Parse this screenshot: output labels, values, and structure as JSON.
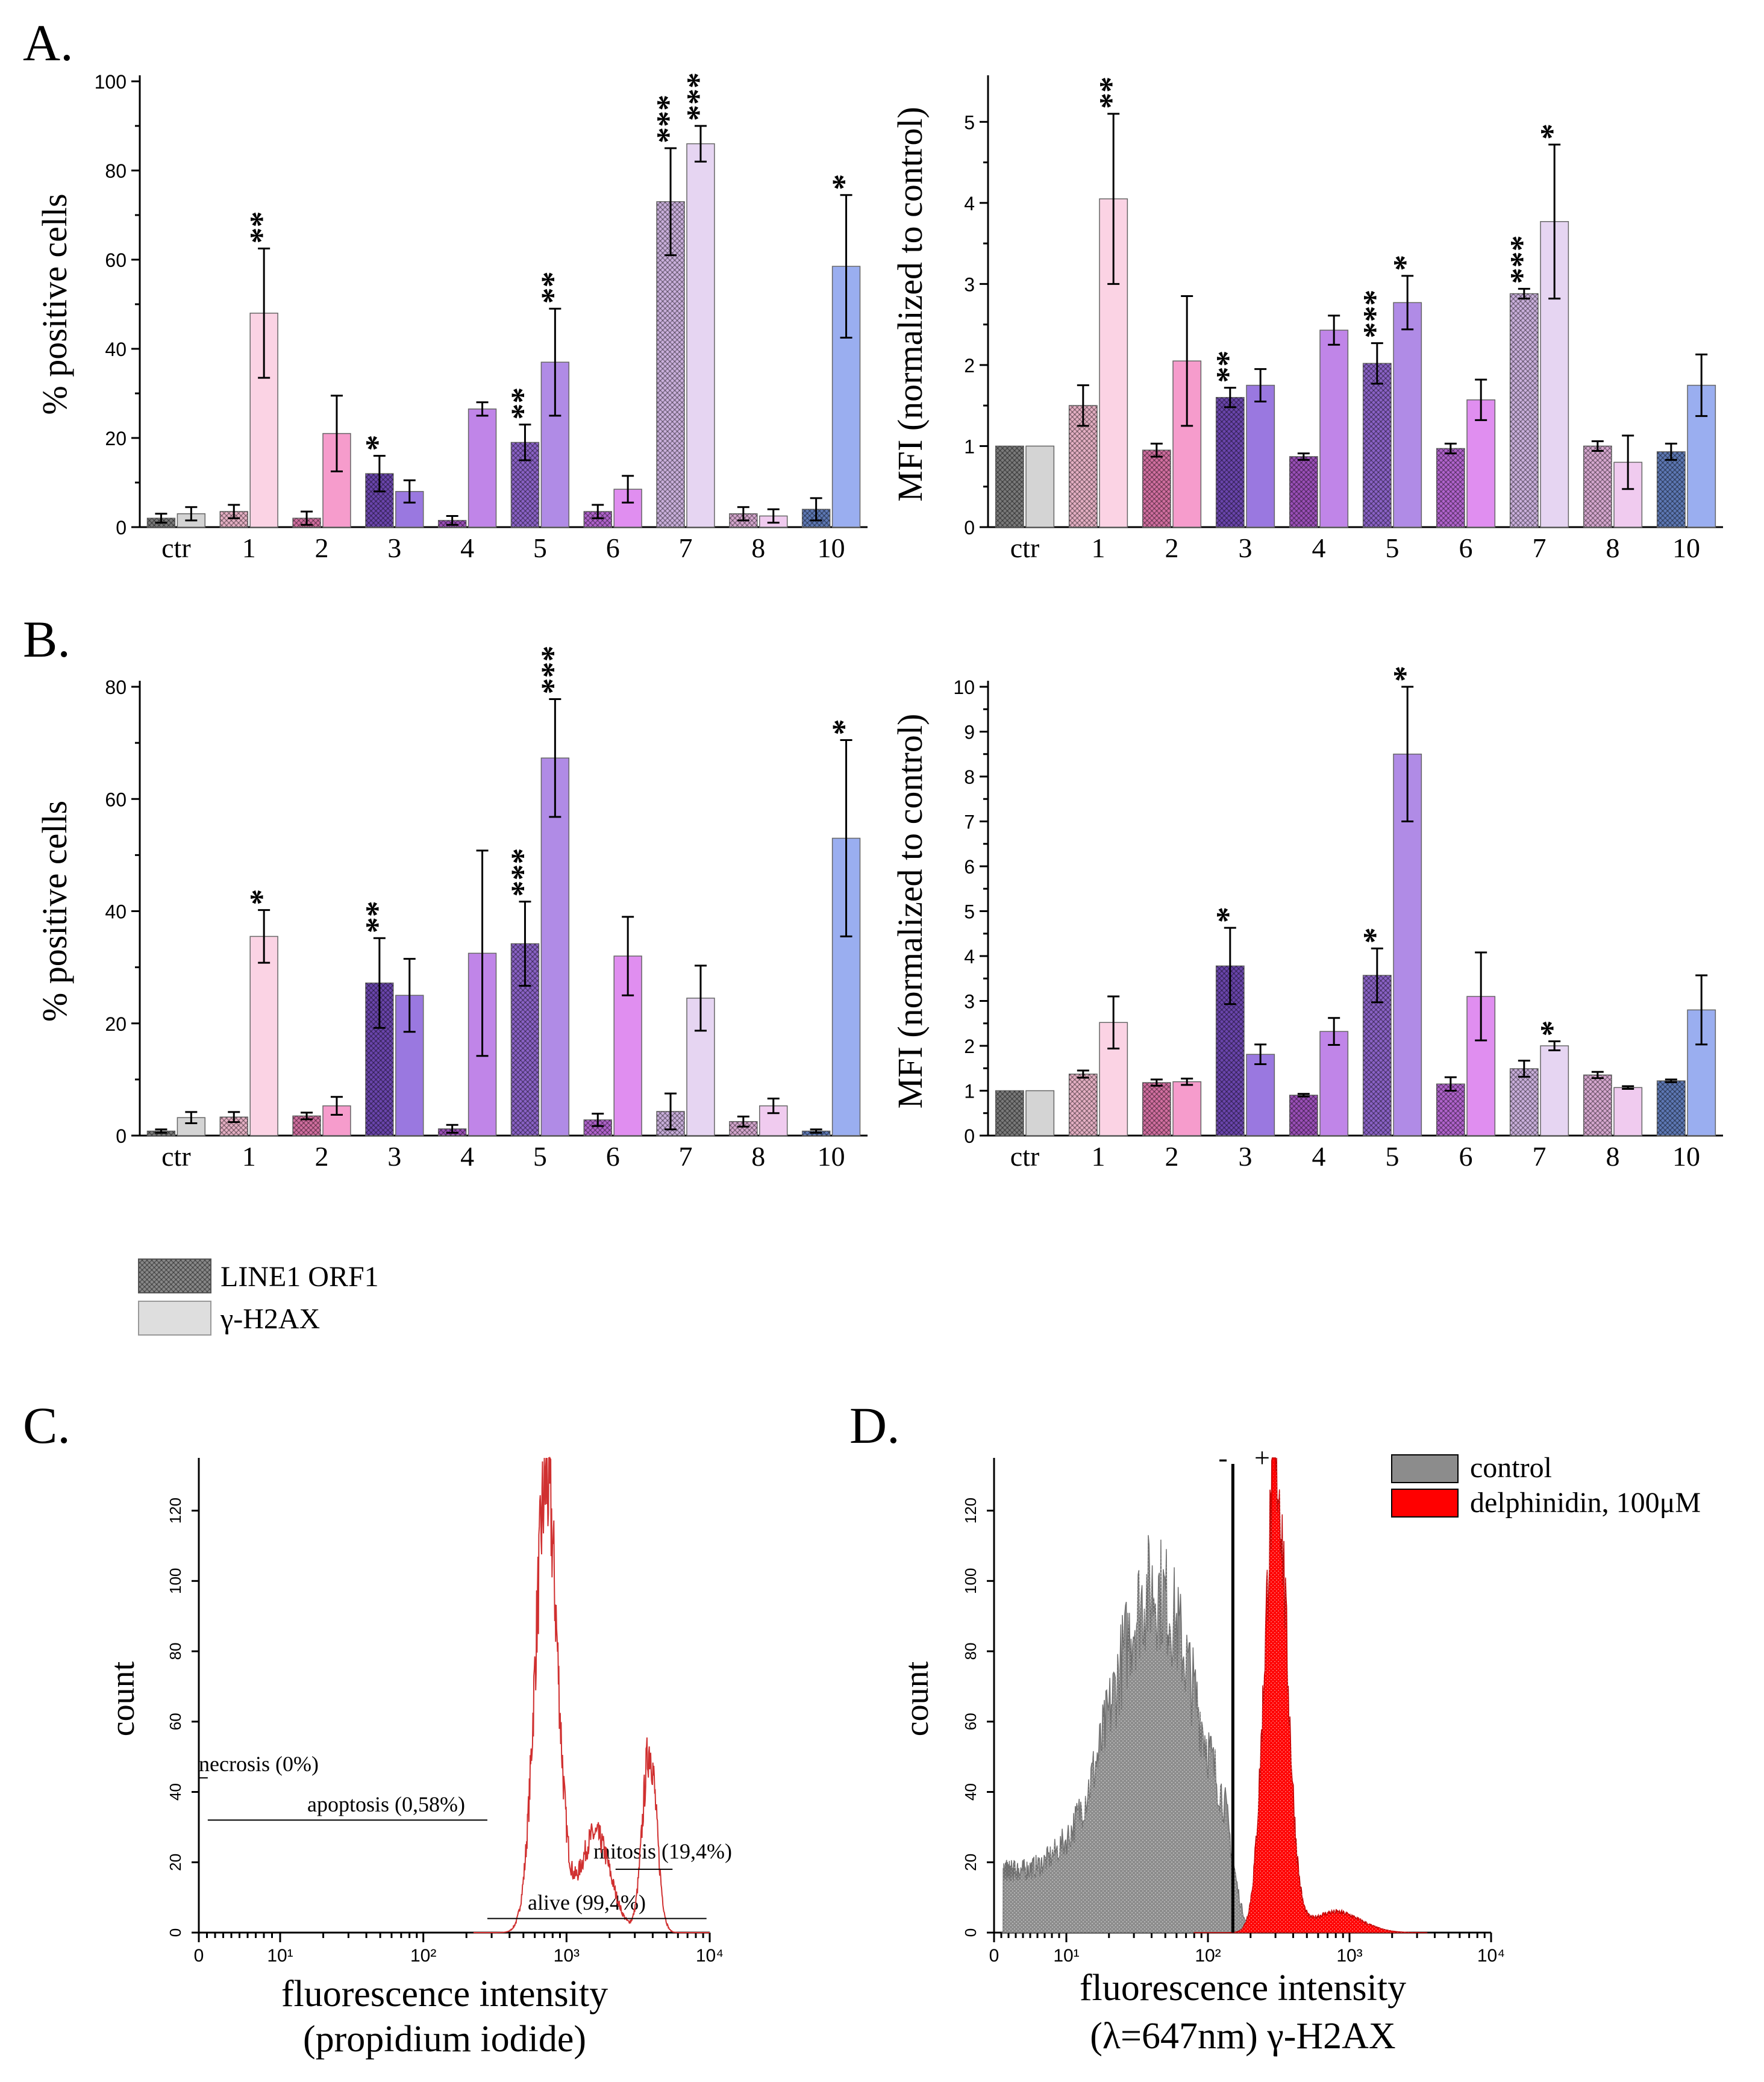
{
  "legend": {
    "line1": "LINE1 ORF1",
    "h2ax": "γ-H2AX"
  },
  "colors": {
    "ctr": [
      "#7a7a7a",
      "#d4d4d4"
    ],
    "1": [
      "#e6b0c4",
      "#fbd3e4"
    ],
    "2": [
      "#d36fa1",
      "#f69ccc"
    ],
    "3": [
      "#6a45ad",
      "#9a78e0"
    ],
    "4": [
      "#9b4fb8",
      "#c085e8"
    ],
    "5": [
      "#8a62c6",
      "#b08be6"
    ],
    "6": [
      "#b163cd",
      "#e08ef0"
    ],
    "7": [
      "#cbb0dd",
      "#e6d5f2"
    ],
    "8": [
      "#d7a8d0",
      "#f0cbef"
    ],
    "10": [
      "#5d78b5",
      "#9aaef0"
    ],
    "d_control": "#8c8c8c",
    "d_delph": "#ff0000"
  },
  "chart_data": [
    {
      "id": "A-left",
      "panel_label": "A.",
      "type": "bar",
      "ylabel": "% positive cells",
      "ylim": [
        0,
        100
      ],
      "yticks": [
        0,
        20,
        40,
        60,
        80,
        100
      ],
      "categories": [
        "ctr",
        "1",
        "2",
        "3",
        "4",
        "5",
        "6",
        "7",
        "8",
        "10"
      ],
      "series": [
        {
          "name": "LINE1 ORF1",
          "values": [
            2,
            3.5,
            2,
            12,
            1.5,
            19,
            3.5,
            73,
            3,
            4
          ],
          "errors": [
            1,
            1.5,
            1.5,
            4,
            1,
            4,
            1.5,
            12,
            1.5,
            2.5
          ],
          "sig": [
            "",
            "",
            "",
            "*",
            "",
            "**",
            "",
            "***",
            "",
            ""
          ]
        },
        {
          "name": "γ-H2AX",
          "values": [
            3,
            48,
            21,
            8,
            26.5,
            37,
            8.5,
            86,
            2.5,
            58.5
          ],
          "errors": [
            1.5,
            14.5,
            8.5,
            2.5,
            1.5,
            12,
            3,
            4,
            1.5,
            16
          ],
          "sig": [
            "",
            "**",
            "",
            "",
            "",
            "**",
            "",
            "***",
            "",
            "*"
          ]
        }
      ]
    },
    {
      "id": "A-right",
      "type": "bar",
      "ylabel": "MFI (normalized to control)",
      "ylim": [
        0,
        5.5
      ],
      "yticks": [
        0,
        1,
        2,
        3,
        4,
        5
      ],
      "categories": [
        "ctr",
        "1",
        "2",
        "3",
        "4",
        "5",
        "6",
        "7",
        "8",
        "10"
      ],
      "series": [
        {
          "name": "LINE1 ORF1",
          "values": [
            1,
            1.5,
            0.95,
            1.6,
            0.87,
            2.02,
            0.97,
            2.88,
            1,
            0.93
          ],
          "errors": [
            0,
            0.25,
            0.08,
            0.12,
            0.04,
            0.25,
            0.06,
            0.06,
            0.06,
            0.1
          ],
          "sig": [
            "",
            "",
            "",
            "**",
            "",
            "***",
            "",
            "***",
            "",
            ""
          ]
        },
        {
          "name": "γ-H2AX",
          "values": [
            1,
            4.05,
            2.05,
            1.75,
            2.43,
            2.77,
            1.57,
            3.77,
            0.8,
            1.75
          ],
          "errors": [
            0,
            1.05,
            0.8,
            0.2,
            0.18,
            0.33,
            0.25,
            0.95,
            0.33,
            0.38
          ],
          "sig": [
            "",
            "**",
            "",
            "",
            "",
            "*",
            "",
            "*",
            "",
            ""
          ]
        }
      ]
    },
    {
      "id": "B-left",
      "panel_label": "B.",
      "type": "bar",
      "ylabel": "% positive cells",
      "ylim": [
        0,
        80
      ],
      "yticks": [
        0,
        20,
        40,
        60,
        80
      ],
      "categories": [
        "ctr",
        "1",
        "2",
        "3",
        "4",
        "5",
        "6",
        "7",
        "8",
        "10"
      ],
      "series": [
        {
          "name": "LINE1 ORF1",
          "values": [
            0.8,
            3.3,
            3.5,
            27.2,
            1.2,
            34.2,
            2.8,
            4.3,
            2.5,
            0.8
          ],
          "errors": [
            0.3,
            0.9,
            0.6,
            8,
            0.7,
            7.5,
            1.1,
            3.2,
            0.9,
            0.3
          ],
          "sig": [
            "",
            "",
            "",
            "**",
            "",
            "***",
            "",
            "",
            "",
            ""
          ]
        },
        {
          "name": "γ-H2AX",
          "values": [
            3.2,
            35.5,
            5.3,
            25,
            32.5,
            67.3,
            32,
            24.5,
            5.3,
            53
          ],
          "errors": [
            1,
            4.7,
            1.6,
            6.5,
            18.3,
            10.5,
            7,
            5.8,
            1.3,
            17.5
          ],
          "sig": [
            "",
            "*",
            "",
            "",
            "",
            "***",
            "",
            "",
            "",
            "*"
          ]
        }
      ]
    },
    {
      "id": "B-right",
      "type": "bar",
      "ylabel": "MFI (normalized to control)",
      "ylim": [
        0,
        10
      ],
      "yticks": [
        0,
        1,
        2,
        3,
        4,
        5,
        6,
        7,
        8,
        9,
        10
      ],
      "categories": [
        "ctr",
        "1",
        "2",
        "3",
        "4",
        "5",
        "6",
        "7",
        "8",
        "10"
      ],
      "series": [
        {
          "name": "LINE1 ORF1",
          "values": [
            1,
            1.37,
            1.18,
            3.78,
            0.9,
            3.57,
            1.15,
            1.49,
            1.35,
            1.22
          ],
          "errors": [
            0,
            0.08,
            0.07,
            0.85,
            0.03,
            0.6,
            0.15,
            0.18,
            0.07,
            0.03
          ],
          "sig": [
            "",
            "",
            "",
            "*",
            "",
            "*",
            "",
            "",
            "",
            ""
          ]
        },
        {
          "name": "γ-H2AX",
          "values": [
            1,
            2.52,
            1.2,
            1.81,
            2.32,
            8.5,
            3.1,
            2,
            1.07,
            2.8
          ],
          "errors": [
            0,
            0.58,
            0.07,
            0.22,
            0.3,
            1.5,
            0.98,
            0.1,
            0.03,
            0.77
          ],
          "sig": [
            "",
            "",
            "",
            "",
            "",
            "*",
            "",
            "*",
            "",
            ""
          ]
        }
      ]
    },
    {
      "id": "C",
      "panel_label": "C.",
      "type": "histogram",
      "title": "",
      "xlabel_line1": "fluorescence intensity",
      "xlabel_line2": "(propidium iodide)",
      "ylabel": "count",
      "xscale": "log",
      "xlim": [
        0,
        10000
      ],
      "ylim": [
        0,
        135
      ],
      "xticks": [
        "0",
        "10¹",
        "10²",
        "10³",
        "10⁴"
      ],
      "yticks": [
        0,
        20,
        40,
        60,
        80,
        100,
        120
      ],
      "series_color": "#d03030",
      "regions": [
        {
          "label": "necrosis (0%)",
          "from": 0,
          "to": 1.1,
          "y": 44
        },
        {
          "label": "apoptosis (0,58%)",
          "from": 1.1,
          "to": 280,
          "y": 32
        },
        {
          "label": "mitosis (19,4%)",
          "from": 2200,
          "to": 5500,
          "y": 18
        },
        {
          "label": "alive (99,4%)",
          "from": 280,
          "to": 9500,
          "y": 4
        }
      ]
    },
    {
      "id": "D",
      "panel_label": "D.",
      "type": "histogram",
      "xlabel_line1": "fluorescence intensity",
      "xlabel_line2": "(λ=647nm) γ-H2AX",
      "ylabel": "count",
      "xscale": "log",
      "xlim": [
        0,
        10000
      ],
      "ylim": [
        0,
        135
      ],
      "xticks": [
        "0",
        "10¹",
        "10²",
        "10³",
        "10⁴"
      ],
      "yticks": [
        0,
        20,
        40,
        60,
        80,
        100,
        120
      ],
      "gate_minus": "-",
      "gate_plus": "+",
      "gate_at": 150,
      "series": [
        {
          "name": "control",
          "peak_x": 40,
          "peak_y": 100
        },
        {
          "name": "delphinidin, 100μM",
          "peak_x": 300,
          "peak_y": 135
        }
      ]
    }
  ]
}
